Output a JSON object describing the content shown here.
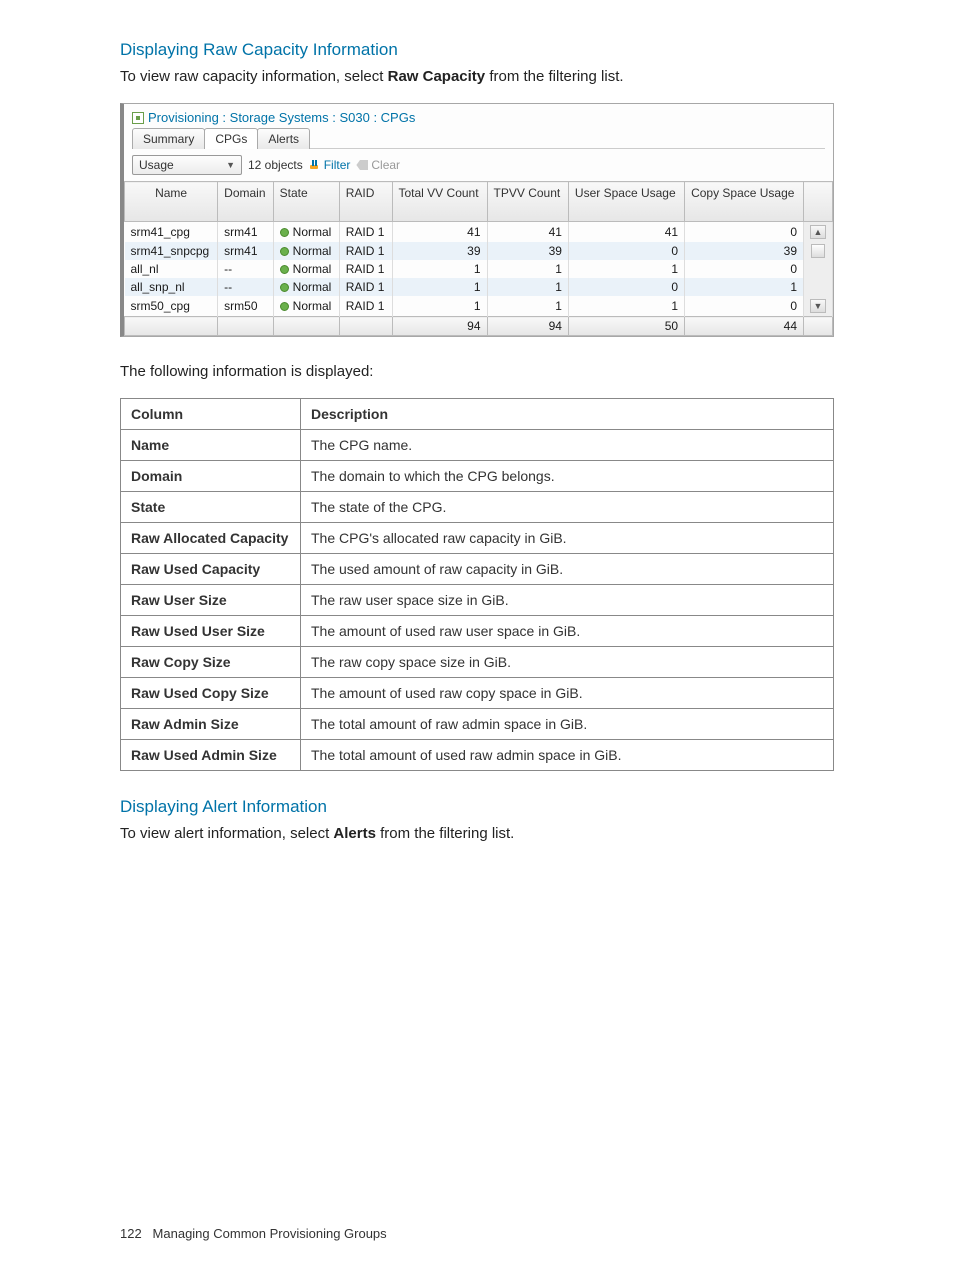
{
  "section1": {
    "heading": "Displaying Raw Capacity Information",
    "intro_prefix": "To view raw capacity information, select ",
    "intro_bold": "Raw Capacity",
    "intro_suffix": " from the filtering list."
  },
  "panel": {
    "breadcrumb": "Provisioning : Storage Systems : S030 : CPGs",
    "tabs": [
      "Summary",
      "CPGs",
      "Alerts"
    ],
    "active_tab_index": 1,
    "dropdown_label": "Usage",
    "object_count": "12 objects",
    "filter_label": "Filter",
    "clear_label": "Clear",
    "columns": [
      "Name",
      "Domain",
      "State",
      "RAID",
      "Total VV Count",
      "TPVV Count",
      "User Space Usage",
      "Copy Space Usage"
    ],
    "rows": [
      {
        "name": "srm41_cpg",
        "domain": "srm41",
        "state": "Normal",
        "raid": "RAID 1",
        "total_vv": "41",
        "tpvv": "41",
        "user": "41",
        "copy": "0"
      },
      {
        "name": "srm41_snpcpg",
        "domain": "srm41",
        "state": "Normal",
        "raid": "RAID 1",
        "total_vv": "39",
        "tpvv": "39",
        "user": "0",
        "copy": "39"
      },
      {
        "name": "all_nl",
        "domain": "--",
        "state": "Normal",
        "raid": "RAID 1",
        "total_vv": "1",
        "tpvv": "1",
        "user": "1",
        "copy": "0"
      },
      {
        "name": "all_snp_nl",
        "domain": "--",
        "state": "Normal",
        "raid": "RAID 1",
        "total_vv": "1",
        "tpvv": "1",
        "user": "0",
        "copy": "1"
      },
      {
        "name": "srm50_cpg",
        "domain": "srm50",
        "state": "Normal",
        "raid": "RAID 1",
        "total_vv": "1",
        "tpvv": "1",
        "user": "1",
        "copy": "0"
      }
    ],
    "totals": {
      "total_vv": "94",
      "tpvv": "94",
      "user": "50",
      "copy": "44"
    }
  },
  "desc_intro": "The following information is displayed:",
  "desc_table": {
    "header": [
      "Column",
      "Description"
    ],
    "rows": [
      [
        "Name",
        "The CPG name."
      ],
      [
        "Domain",
        "The domain to which the CPG belongs."
      ],
      [
        "State",
        "The state of the CPG."
      ],
      [
        "Raw Allocated Capacity",
        "The CPG's allocated raw capacity in GiB."
      ],
      [
        "Raw Used Capacity",
        "The used amount of raw capacity in GiB."
      ],
      [
        "Raw User Size",
        "The raw user space size in GiB."
      ],
      [
        "Raw Used User Size",
        "The amount of used raw user space in GiB."
      ],
      [
        "Raw Copy Size",
        "The raw copy space size in GiB."
      ],
      [
        "Raw Used Copy Size",
        "The amount of used raw copy space in GiB."
      ],
      [
        "Raw Admin Size",
        "The total amount of raw admin space in GiB."
      ],
      [
        "Raw Used Admin Size",
        "The total amount of used raw admin space in GiB."
      ]
    ]
  },
  "section2": {
    "heading": "Displaying Alert Information",
    "intro_prefix": "To view alert information, select ",
    "intro_bold": "Alerts",
    "intro_suffix": " from the filtering list."
  },
  "footer": {
    "page_num": "122",
    "chapter": "Managing Common Provisioning Groups"
  }
}
